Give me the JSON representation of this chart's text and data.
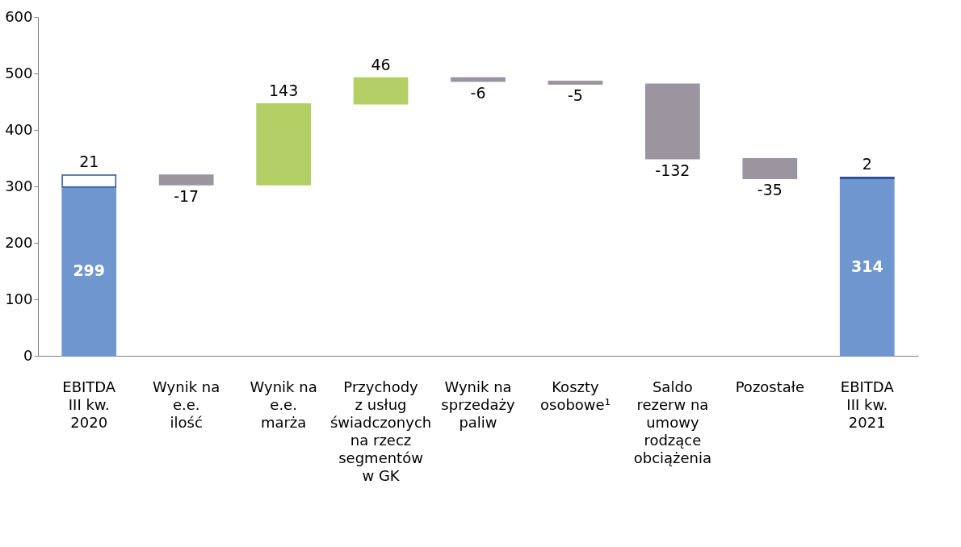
{
  "chart_data": {
    "type": "bar",
    "categories": [
      "EBITDA III kw. 2020",
      "Wynik na e.e. ilość",
      "Wynik na e.e. marża",
      "Przychody z usług świadczonych na rzecz segmentów w GK",
      "Wynik na sprzedaży paliw",
      "Koszty osobowe¹",
      "Saldo rezerw na umowy rodzące obciążenia",
      "Pozostałe",
      "EBITDA III kw. 2021"
    ],
    "series": [
      {
        "color": "#7096cf",
        "values": [
          299,
          null,
          null,
          null,
          null,
          null,
          null,
          null,
          314
        ]
      },
      {
        "color": "#ffffff",
        "values": [
          21,
          null,
          null,
          null,
          null,
          null,
          null,
          null,
          2
        ],
        "base": [
          299,
          null,
          null,
          null,
          null,
          null,
          null,
          null,
          314
        ]
      },
      {
        "colors": [
          null,
          "#9a959f",
          "#b4cf66",
          "#b4cf66",
          "#9a959f",
          "#9a959f",
          "#9a959f",
          "#9a959f",
          null
        ],
        "values": [
          null,
          -17,
          143,
          46,
          -6,
          -5,
          -132,
          -35,
          null
        ],
        "base": [
          null,
          320,
          303,
          446,
          492,
          486,
          481,
          349,
          null
        ]
      }
    ],
    "ylim": [
      0,
      600
    ],
    "yticks": [
      0,
      100,
      200,
      300,
      400,
      500,
      600
    ],
    "data_labels": true,
    "grid": false
  }
}
